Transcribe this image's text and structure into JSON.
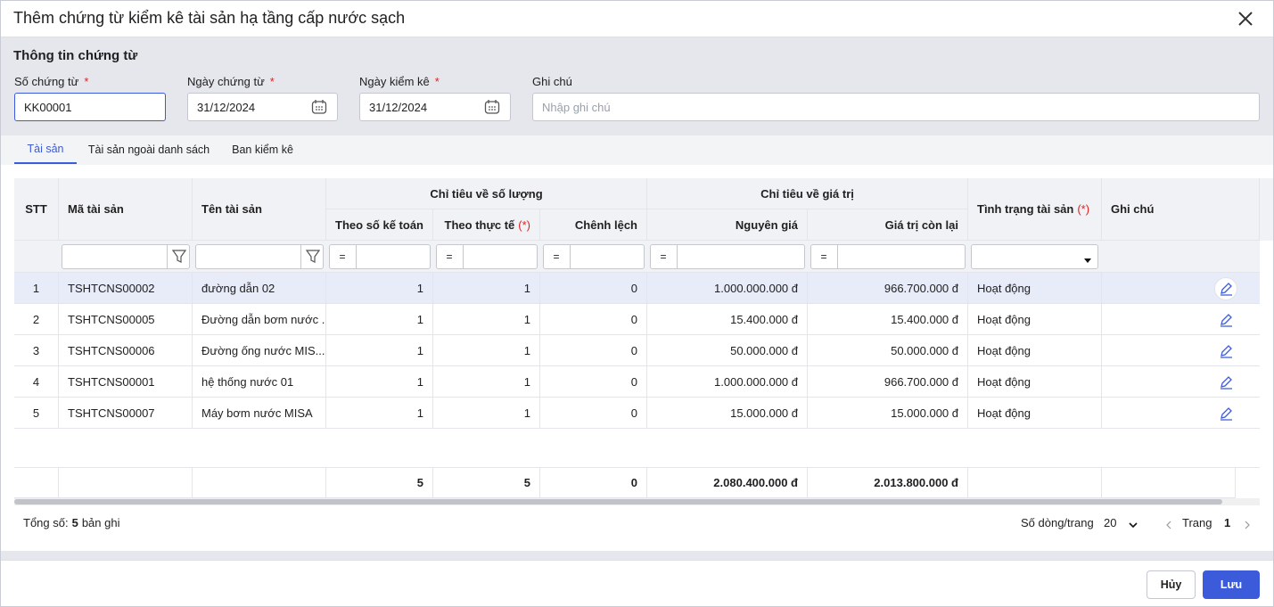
{
  "dialog": {
    "title": "Thêm chứng từ kiểm kê tài sản hạ tầng cấp nước sạch"
  },
  "section": {
    "title": "Thông tin chứng từ"
  },
  "fields": [
    {
      "label": "Số chứng từ",
      "required": "*",
      "value": "KK00001"
    },
    {
      "label": "Ngày chứng từ",
      "required": "*",
      "value": "31/12/2024"
    },
    {
      "label": "Ngày kiểm kê",
      "required": "*",
      "value": "31/12/2024"
    },
    {
      "label": "Ghi chú",
      "placeholder": "Nhập ghi chú"
    }
  ],
  "tabs": [
    "Tài sản",
    "Tài sản ngoài danh sách",
    "Ban kiểm kê"
  ],
  "table": {
    "group_headers": [
      "Chỉ tiêu về số lượng",
      "Chỉ tiêu về giá trị"
    ],
    "headers": [
      "STT",
      "Mã tài sản",
      "Tên tài sản",
      "Theo số kế toán",
      "Theo thực tế",
      "Chênh lệch",
      "Nguyên giá",
      "Giá trị còn lại",
      "Tình trạng tài sản",
      "Ghi chú"
    ],
    "required_marker": "(*)",
    "filter_operator": "=",
    "rows": [
      [
        "1",
        "TSHTCNS00002",
        "đường dẫn 02",
        "1",
        "1",
        "0",
        "1.000.000.000 đ",
        "966.700.000 đ",
        "Hoạt động"
      ],
      [
        "2",
        "TSHTCNS00005",
        "Đường dẫn bơm nước ...",
        "1",
        "1",
        "0",
        "15.400.000 đ",
        "15.400.000 đ",
        "Hoạt động"
      ],
      [
        "3",
        "TSHTCNS00006",
        "Đường ống nước MIS...",
        "1",
        "1",
        "0",
        "50.000.000 đ",
        "50.000.000 đ",
        "Hoạt động"
      ],
      [
        "4",
        "TSHTCNS00001",
        "hệ thống nước 01",
        "1",
        "1",
        "0",
        "1.000.000.000 đ",
        "966.700.000 đ",
        "Hoạt động"
      ],
      [
        "5",
        "TSHTCNS00007",
        "Máy bơm nước MISA",
        "1",
        "1",
        "0",
        "15.000.000 đ",
        "15.000.000 đ",
        "Hoạt động"
      ]
    ],
    "totals": [
      "5",
      "5",
      "0",
      "2.080.400.000 đ",
      "2.013.800.000 đ"
    ]
  },
  "footer": {
    "total_label": "Tổng số:",
    "total_count": "5",
    "total_suffix": "bản ghi",
    "page_size_label": "Số dòng/trang",
    "page_size": "20",
    "page_label": "Trang",
    "page": "1"
  },
  "buttons": [
    "Hủy",
    "Lưu"
  ]
}
